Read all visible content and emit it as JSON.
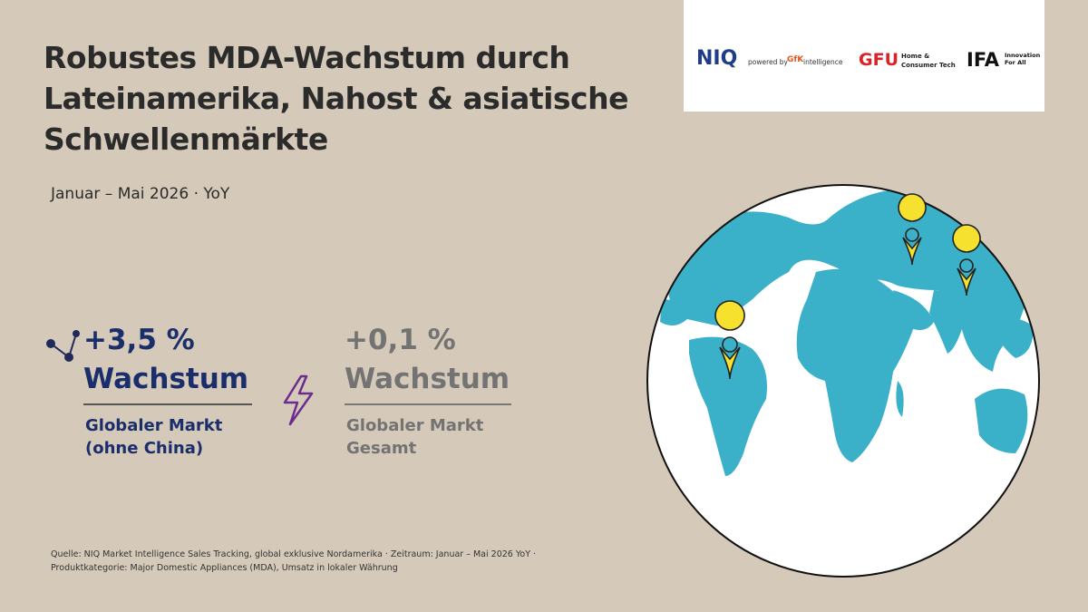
{
  "header": {
    "title_lines": [
      "Robustes MDA-Wachstum durch",
      "Lateinamerika, Nahost & asiatische",
      "Schwellenmärkte"
    ],
    "subtitle": "Januar – Mai 2026 · YoY"
  },
  "logos": {
    "niq": "NIQ",
    "powered_by": "powered by",
    "gfk": "GfK",
    "intelligence": "intelligence",
    "gfu": "GFU",
    "gfu_line1": "Home &",
    "gfu_line2": "Consumer Tech",
    "ifa": "IFA",
    "ifa_line1": "Innovation",
    "ifa_line2": "For All"
  },
  "stats": [
    {
      "value": "+3,5 %",
      "label": "Wachstum",
      "description": [
        "Globaler Markt",
        "(ohne China)"
      ]
    },
    {
      "value": "+0,1 %",
      "label": "Wachstum",
      "description": [
        "Globaler Markt",
        "Gesamt"
      ]
    }
  ],
  "source": [
    "Quelle: NIQ Market Intelligence Sales Tracking, global exklusive Nordamerika · Zeitraum: Januar – Mai 2026 YoY ·",
    "Produktkategorie: Major Domestic Appliances (MDA), Umsatz in lokaler Währung"
  ]
}
